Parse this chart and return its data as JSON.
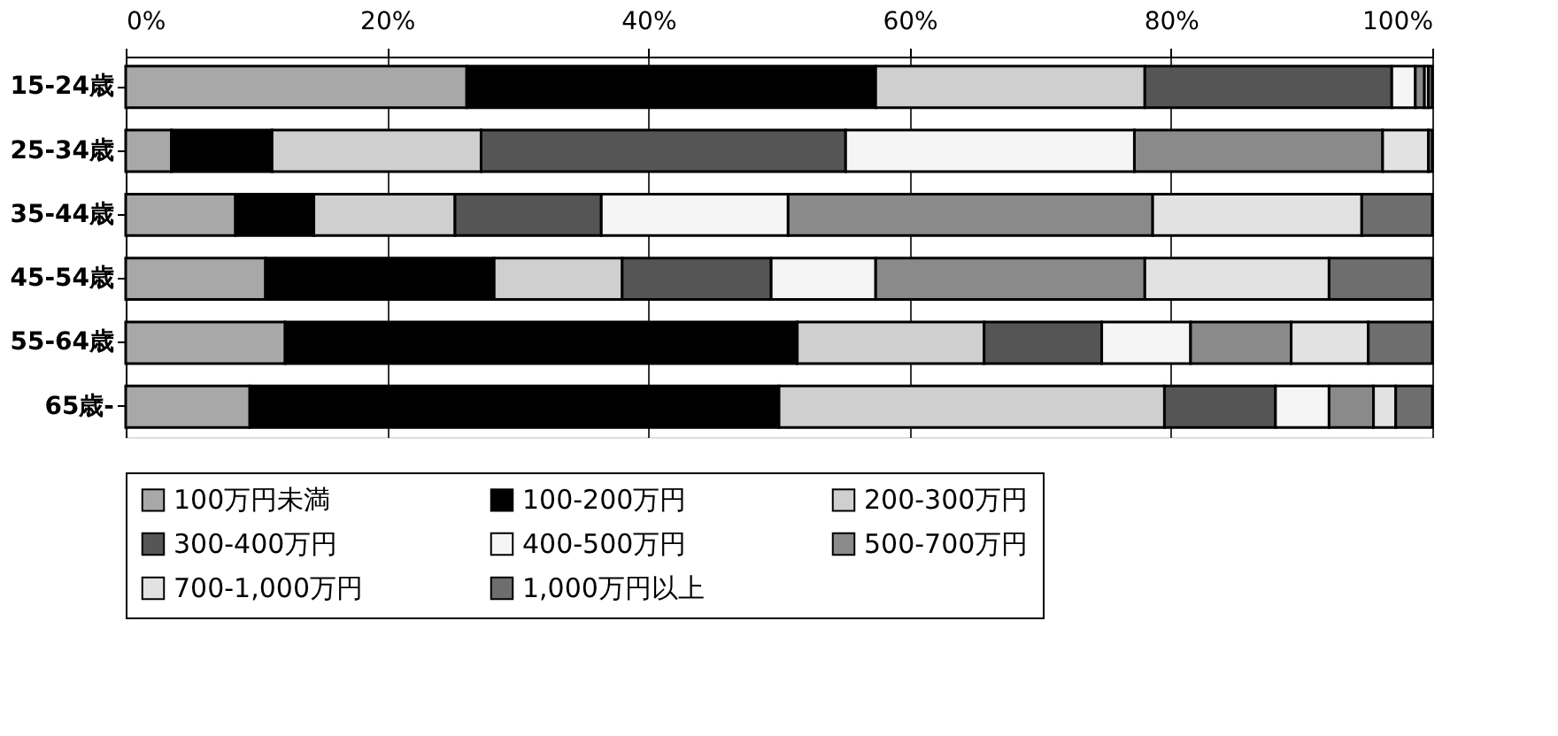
{
  "chart_data": {
    "type": "bar",
    "orientation": "horizontal",
    "stacked": true,
    "categories": [
      "15-24歳",
      "25-34歳",
      "35-44歳",
      "45-54歳",
      "55-64歳",
      "65歳-"
    ],
    "series": [
      {
        "name": "100万円未満",
        "color": "#a8a8a8",
        "values": [
          26.1,
          3.5,
          8.4,
          10.7,
          12.2,
          9.5
        ]
      },
      {
        "name": "100-200万円",
        "color": "#000000",
        "values": [
          31.3,
          7.7,
          6.0,
          17.5,
          39.2,
          40.5
        ]
      },
      {
        "name": "200-300万円",
        "color": "#cfcfcf",
        "values": [
          20.6,
          16.0,
          10.8,
          9.8,
          14.3,
          29.5
        ]
      },
      {
        "name": "300-400万円",
        "color": "#555555",
        "values": [
          18.9,
          27.9,
          11.2,
          11.4,
          9.0,
          8.5
        ]
      },
      {
        "name": "400-500万円",
        "color": "#f5f5f5",
        "values": [
          1.8,
          22.1,
          14.3,
          8.0,
          6.8,
          4.1
        ]
      },
      {
        "name": "500-700万円",
        "color": "#8a8a8a",
        "values": [
          0.7,
          19.0,
          27.9,
          20.6,
          7.7,
          3.4
        ]
      },
      {
        "name": "700-1,000万円",
        "color": "#e2e2e2",
        "values": [
          0.3,
          3.5,
          16.0,
          14.1,
          5.9,
          1.7
        ]
      },
      {
        "name": "1,000万円以上",
        "color": "#6e6e6e",
        "values": [
          0.3,
          0.3,
          5.4,
          7.9,
          4.9,
          2.8
        ]
      }
    ],
    "xlim": [
      0,
      100
    ],
    "xticks": [
      {
        "value": 0,
        "label": "0%"
      },
      {
        "value": 20,
        "label": "20%"
      },
      {
        "value": 40,
        "label": "40%"
      },
      {
        "value": 60,
        "label": "60%"
      },
      {
        "value": 80,
        "label": "80%"
      },
      {
        "value": 100,
        "label": "100%"
      }
    ],
    "grid": "x",
    "legend": "bottom"
  }
}
